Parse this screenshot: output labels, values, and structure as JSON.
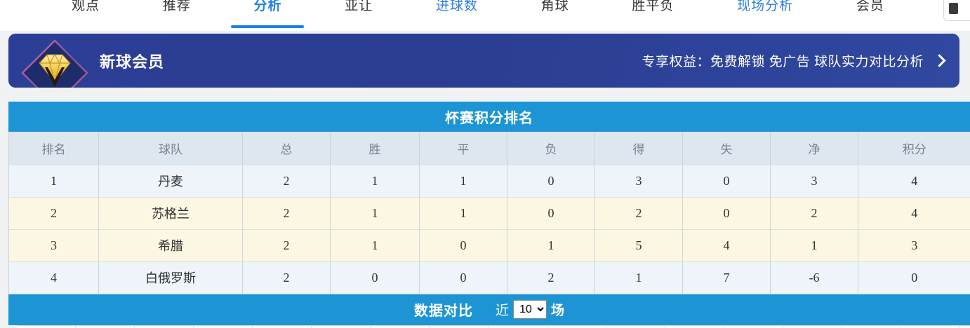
{
  "nav": {
    "tabs": [
      {
        "label": "观点",
        "state": "default"
      },
      {
        "label": "推荐",
        "state": "default"
      },
      {
        "label": "分析",
        "state": "active"
      },
      {
        "label": "亚让",
        "state": "default"
      },
      {
        "label": "进球数",
        "state": "link"
      },
      {
        "label": "角球",
        "state": "default"
      },
      {
        "label": "胜平负",
        "state": "default"
      },
      {
        "label": "现场分析",
        "state": "link"
      },
      {
        "label": "会员",
        "state": "default"
      }
    ]
  },
  "banner": {
    "title": "新球会员",
    "benefits": "专享权益：免费解锁 免广告 球队实力对比分析",
    "icon": "vip-diamond-icon"
  },
  "standings": {
    "title": "杯赛积分排名",
    "columns": [
      "排名",
      "球队",
      "总",
      "胜",
      "平",
      "负",
      "得",
      "失",
      "净",
      "积分"
    ],
    "rows": [
      {
        "tone": "blue",
        "cells": [
          "1",
          "丹麦",
          "2",
          "1",
          "1",
          "0",
          "3",
          "0",
          "3",
          "4"
        ]
      },
      {
        "tone": "yellow",
        "cells": [
          "2",
          "苏格兰",
          "2",
          "1",
          "1",
          "0",
          "2",
          "0",
          "2",
          "4"
        ]
      },
      {
        "tone": "yellow",
        "cells": [
          "3",
          "希腊",
          "2",
          "1",
          "0",
          "1",
          "5",
          "4",
          "1",
          "3"
        ]
      },
      {
        "tone": "blue",
        "cells": [
          "4",
          "白俄罗斯",
          "2",
          "0",
          "0",
          "2",
          "1",
          "7",
          "-6",
          "0"
        ]
      }
    ]
  },
  "compare_bar": {
    "title": "数据对比",
    "prefix": "近",
    "selected": "10",
    "options": [
      "10"
    ],
    "suffix": "场"
  },
  "colors": {
    "accent_blue": "#1d95d4",
    "active_tab_blue": "#1d82e2",
    "link_blue": "#2b7de0",
    "banner_navy": "#2a3d92",
    "team_green": "#3aa054",
    "row_blue": "#eef4fa",
    "row_yellow": "#fcf7e2",
    "header_row_bg": "#dee6ef"
  }
}
